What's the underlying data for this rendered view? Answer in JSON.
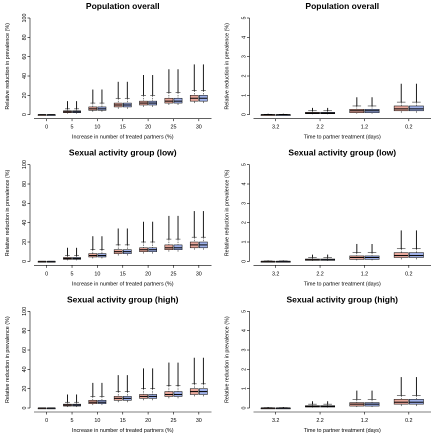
{
  "colors": {
    "box_a": "#e8a89c",
    "box_b": "#9fb0e8",
    "stroke": "#000000",
    "whisker": "#000000"
  },
  "chart_data": [
    {
      "type": "boxplot",
      "title": "Population overall",
      "xlabel": "Increase in number of treated partners (%)",
      "ylabel": "Relative reduction in prevalence (%)",
      "ylim": [
        0,
        100
      ],
      "yticks": [
        "0",
        "20",
        "40",
        "60",
        "80",
        "100"
      ],
      "categories": [
        "0",
        "5",
        "10",
        "15",
        "20",
        "25",
        "30"
      ],
      "series": [
        {
          "boxes": [
            [
              0,
              0,
              0,
              0,
              0
            ],
            [
              1,
              2,
              3,
              4,
              6
            ],
            [
              3,
              4.5,
              6,
              8,
              12
            ],
            [
              6,
              8,
              10,
              12,
              17
            ],
            [
              8,
              10,
              12,
              14,
              20
            ],
            [
              10,
              12,
              14,
              17,
              23
            ],
            [
              12,
              14,
              17,
              20,
              25
            ]
          ],
          "maxes": [
            0,
            14,
            26,
            34,
            41,
            47,
            52
          ]
        },
        {
          "boxes": [
            [
              0,
              0,
              0,
              0,
              0
            ],
            [
              1,
              2,
              3,
              4,
              6
            ],
            [
              3,
              4.5,
              6,
              8,
              12
            ],
            [
              6,
              8,
              10,
              12,
              17
            ],
            [
              8,
              10,
              12,
              14,
              20
            ],
            [
              10,
              12,
              14,
              17,
              23
            ],
            [
              12,
              14,
              17,
              20,
              25
            ]
          ],
          "maxes": [
            0,
            14,
            26,
            34,
            41,
            47,
            52
          ]
        }
      ]
    },
    {
      "type": "boxplot",
      "title": "Population overall",
      "xlabel": "Time to partner treatment (days)",
      "ylabel": "Relative reduction in prevalence (%)",
      "ylim": [
        0,
        5
      ],
      "yticks": [
        "0",
        "1",
        "2",
        "3",
        "4",
        "5"
      ],
      "categories": [
        "3.2",
        "2.2",
        "1.2",
        "0.2"
      ],
      "series": [
        {
          "boxes": [
            [
              0,
              0,
              0,
              0,
              0.02
            ],
            [
              0.02,
              0.05,
              0.08,
              0.12,
              0.2
            ],
            [
              0.05,
              0.1,
              0.2,
              0.28,
              0.45
            ],
            [
              0.1,
              0.2,
              0.3,
              0.45,
              0.65
            ]
          ],
          "maxes": [
            0.05,
            0.35,
            0.9,
            1.6
          ]
        },
        {
          "boxes": [
            [
              0,
              0,
              0,
              0,
              0.02
            ],
            [
              0.02,
              0.05,
              0.08,
              0.12,
              0.2
            ],
            [
              0.05,
              0.1,
              0.2,
              0.28,
              0.45
            ],
            [
              0.1,
              0.2,
              0.3,
              0.45,
              0.65
            ]
          ],
          "maxes": [
            0.05,
            0.35,
            0.9,
            1.6
          ]
        }
      ]
    },
    {
      "type": "boxplot",
      "title": "Sexual activity group (low)",
      "xlabel": "Increase in number of treated partners (%)",
      "ylabel": "Relative reduction in prevalence (%)",
      "ylim": [
        0,
        100
      ],
      "yticks": [
        "0",
        "20",
        "40",
        "60",
        "80",
        "100"
      ],
      "categories": [
        "0",
        "5",
        "10",
        "15",
        "20",
        "25",
        "30"
      ],
      "series": [
        {
          "boxes": [
            [
              0,
              0,
              0,
              0,
              0
            ],
            [
              1,
              2,
              3,
              4,
              6
            ],
            [
              3,
              4.5,
              6,
              8,
              12
            ],
            [
              6,
              8,
              10,
              12,
              17
            ],
            [
              8,
              10,
              12,
              14,
              20
            ],
            [
              10,
              12,
              14,
              17,
              23
            ],
            [
              12,
              14,
              17,
              20,
              25
            ]
          ],
          "maxes": [
            0,
            14,
            26,
            34,
            41,
            47,
            52
          ]
        },
        {
          "boxes": [
            [
              0,
              0,
              0,
              0,
              0
            ],
            [
              1,
              2,
              3,
              4,
              6
            ],
            [
              3,
              4.5,
              6,
              8,
              12
            ],
            [
              6,
              8,
              10,
              12,
              17
            ],
            [
              8,
              10,
              12,
              14,
              20
            ],
            [
              10,
              12,
              14,
              17,
              23
            ],
            [
              12,
              14,
              17,
              20,
              25
            ]
          ],
          "maxes": [
            0,
            14,
            26,
            34,
            41,
            47,
            52
          ]
        }
      ]
    },
    {
      "type": "boxplot",
      "title": "Sexual activity group (low)",
      "xlabel": "Time to partner treatment (days)",
      "ylabel": "Relative reduction in prevalence (%)",
      "ylim": [
        0,
        5
      ],
      "yticks": [
        "0",
        "1",
        "2",
        "3",
        "4",
        "5"
      ],
      "categories": [
        "3.2",
        "2.2",
        "1.2",
        "0.2"
      ],
      "series": [
        {
          "boxes": [
            [
              0,
              0,
              0,
              0,
              0.02
            ],
            [
              0.02,
              0.05,
              0.08,
              0.12,
              0.2
            ],
            [
              0.05,
              0.1,
              0.2,
              0.28,
              0.45
            ],
            [
              0.1,
              0.2,
              0.3,
              0.45,
              0.65
            ]
          ],
          "maxes": [
            0.05,
            0.35,
            0.9,
            1.6
          ]
        },
        {
          "boxes": [
            [
              0,
              0,
              0,
              0,
              0.02
            ],
            [
              0.02,
              0.05,
              0.08,
              0.12,
              0.2
            ],
            [
              0.05,
              0.1,
              0.2,
              0.28,
              0.45
            ],
            [
              0.1,
              0.2,
              0.3,
              0.45,
              0.65
            ]
          ],
          "maxes": [
            0.05,
            0.35,
            0.9,
            1.6
          ]
        }
      ]
    },
    {
      "type": "boxplot",
      "title": "Sexual activity group (high)",
      "xlabel": "Increase in number of treated partners (%)",
      "ylabel": "Relative reduction in prevalence (%)",
      "ylim": [
        0,
        100
      ],
      "yticks": [
        "0",
        "20",
        "40",
        "60",
        "80",
        "100"
      ],
      "categories": [
        "0",
        "5",
        "10",
        "15",
        "20",
        "25",
        "30"
      ],
      "series": [
        {
          "boxes": [
            [
              0,
              0,
              0,
              0,
              0
            ],
            [
              1,
              2,
              3,
              4,
              6
            ],
            [
              3,
              4.5,
              6,
              8,
              12
            ],
            [
              6,
              8,
              10,
              12,
              17
            ],
            [
              8,
              10,
              12,
              14,
              20
            ],
            [
              10,
              12,
              14,
              17,
              23
            ],
            [
              12,
              14,
              17,
              20,
              25
            ]
          ],
          "maxes": [
            0,
            14,
            26,
            34,
            41,
            47,
            52
          ]
        },
        {
          "boxes": [
            [
              0,
              0,
              0,
              0,
              0
            ],
            [
              1,
              2,
              3,
              4,
              6
            ],
            [
              3,
              4.5,
              6,
              8,
              12
            ],
            [
              6,
              8,
              10,
              12,
              17
            ],
            [
              8,
              10,
              12,
              14,
              20
            ],
            [
              10,
              12,
              14,
              17,
              23
            ],
            [
              12,
              14,
              17,
              20,
              25
            ]
          ],
          "maxes": [
            0,
            14,
            26,
            34,
            41,
            47,
            52
          ]
        }
      ]
    },
    {
      "type": "boxplot",
      "title": "Sexual activity group (high)",
      "xlabel": "Time to partner treatment (days)",
      "ylabel": "Relative reduction in prevalence (%)",
      "ylim": [
        0,
        5
      ],
      "yticks": [
        "0",
        "1",
        "2",
        "3",
        "4",
        "5"
      ],
      "categories": [
        "3.2",
        "2.2",
        "1.2",
        "0.2"
      ],
      "series": [
        {
          "boxes": [
            [
              0,
              0,
              0,
              0,
              0.02
            ],
            [
              0.02,
              0.05,
              0.08,
              0.12,
              0.2
            ],
            [
              0.05,
              0.1,
              0.2,
              0.28,
              0.45
            ],
            [
              0.1,
              0.2,
              0.3,
              0.45,
              0.65
            ]
          ],
          "maxes": [
            0.05,
            0.35,
            0.9,
            1.6
          ]
        },
        {
          "boxes": [
            [
              0,
              0,
              0,
              0,
              0.02
            ],
            [
              0.02,
              0.05,
              0.08,
              0.12,
              0.2
            ],
            [
              0.05,
              0.1,
              0.2,
              0.28,
              0.45
            ],
            [
              0.1,
              0.2,
              0.3,
              0.45,
              0.65
            ]
          ],
          "maxes": [
            0.05,
            0.35,
            0.9,
            1.6
          ]
        }
      ]
    }
  ]
}
